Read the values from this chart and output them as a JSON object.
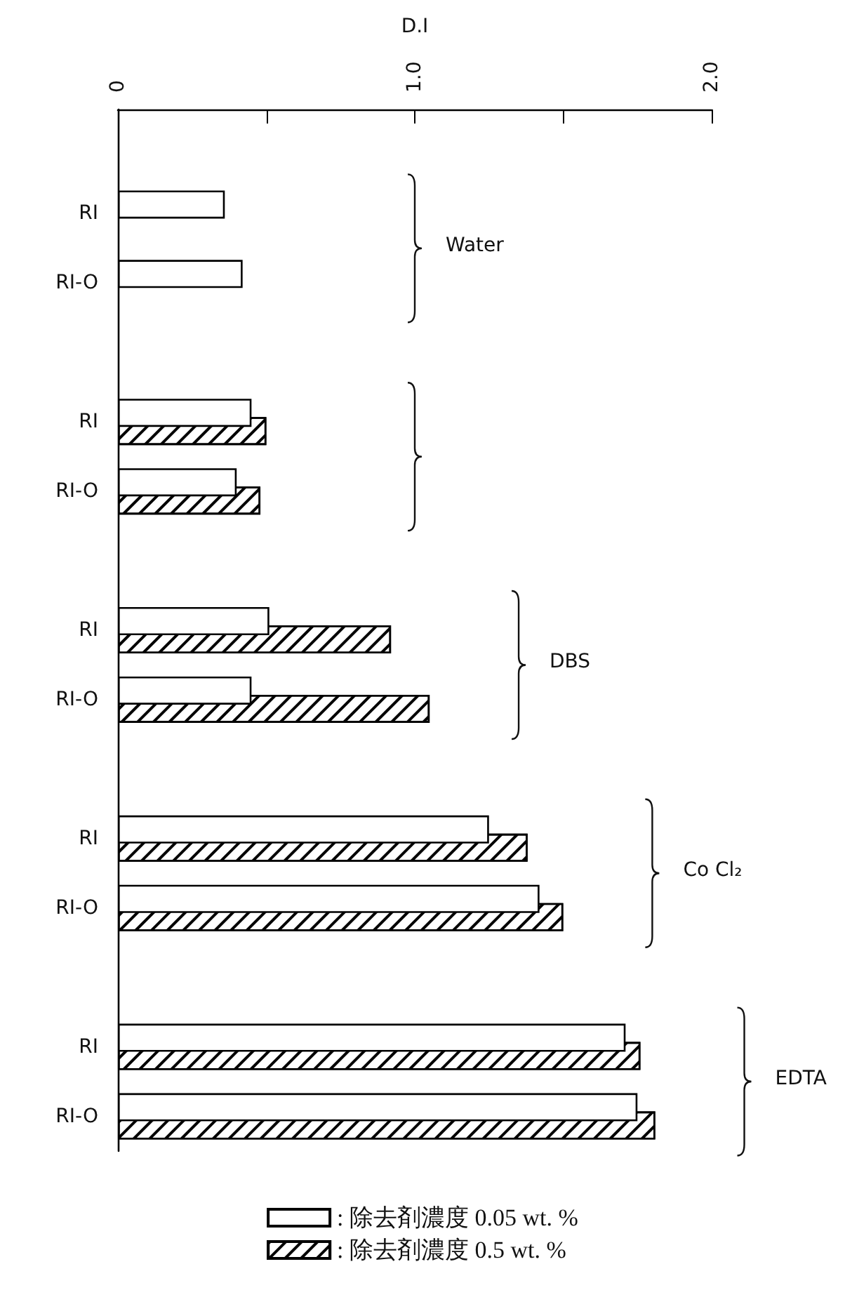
{
  "chart_data": {
    "type": "bar",
    "orientation": "horizontal",
    "xlabel": "D.I",
    "categories": [
      "RI",
      "RI-O",
      "RI",
      "RI-O",
      "RI",
      "RI-O",
      "RI",
      "RI-O",
      "RI",
      "RI-O"
    ],
    "series": [
      {
        "name": ": 除去剤濃度 0.05 wt. %",
        "color": "#ffffff",
        "values": [
          0.36,
          0.42,
          0.45,
          0.4,
          0.51,
          0.45,
          1.25,
          1.42,
          1.71,
          1.75
        ]
      },
      {
        "name": ": 除去剤濃度 0.5 wt. %",
        "color": "#ffffff",
        "values": [
          null,
          null,
          0.5,
          0.48,
          0.92,
          1.05,
          1.38,
          1.5,
          1.76,
          1.81
        ]
      }
    ],
    "xlim": [
      0,
      2.0
    ],
    "xticks": [
      0,
      {
        "value": 0.5,
        "label": null
      },
      {
        "value": 1.0,
        "label": "1.0"
      },
      {
        "value": 1.5,
        "label": null
      },
      {
        "value": 2.0,
        "label": "2.0"
      }
    ],
    "annotations": [
      "Water",
      "DBS",
      "Co Cl₂",
      "EDTA"
    ],
    "grid": false,
    "legend": "bottom"
  }
}
